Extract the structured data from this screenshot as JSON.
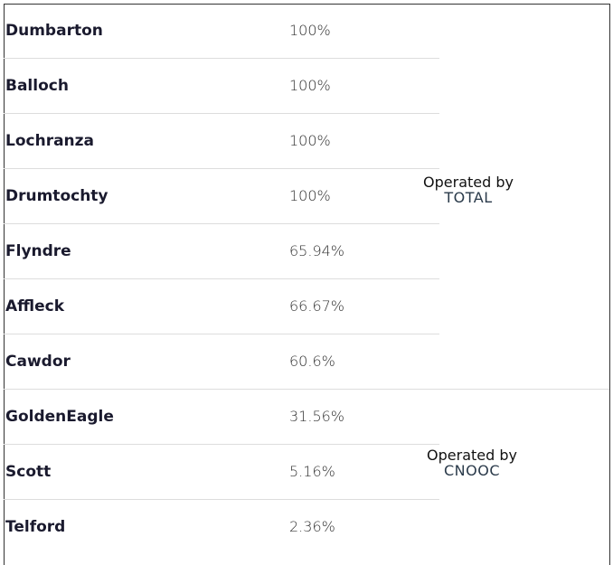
{
  "groups": [
    {
      "operated_label": "Operated by",
      "operator": "TOTAL",
      "rows": [
        {
          "name": "Dumbarton",
          "value": "100%"
        },
        {
          "name": "Balloch",
          "value": "100%"
        },
        {
          "name": "Lochranza",
          "value": "100%"
        },
        {
          "name": "Drumtochty",
          "value": "100%"
        },
        {
          "name": "Flyndre",
          "value": "65.94%"
        },
        {
          "name": "Affleck",
          "value": "66.67%"
        },
        {
          "name": "Cawdor",
          "value": "60.6%"
        }
      ]
    },
    {
      "operated_label": "Operated by",
      "operator": "CNOOC",
      "rows": [
        {
          "name": "GoldenEagle",
          "value": "31.56%"
        },
        {
          "name": "Scott",
          "value": "5.16%"
        },
        {
          "name": "Telford",
          "value": "2.36%"
        }
      ]
    }
  ]
}
